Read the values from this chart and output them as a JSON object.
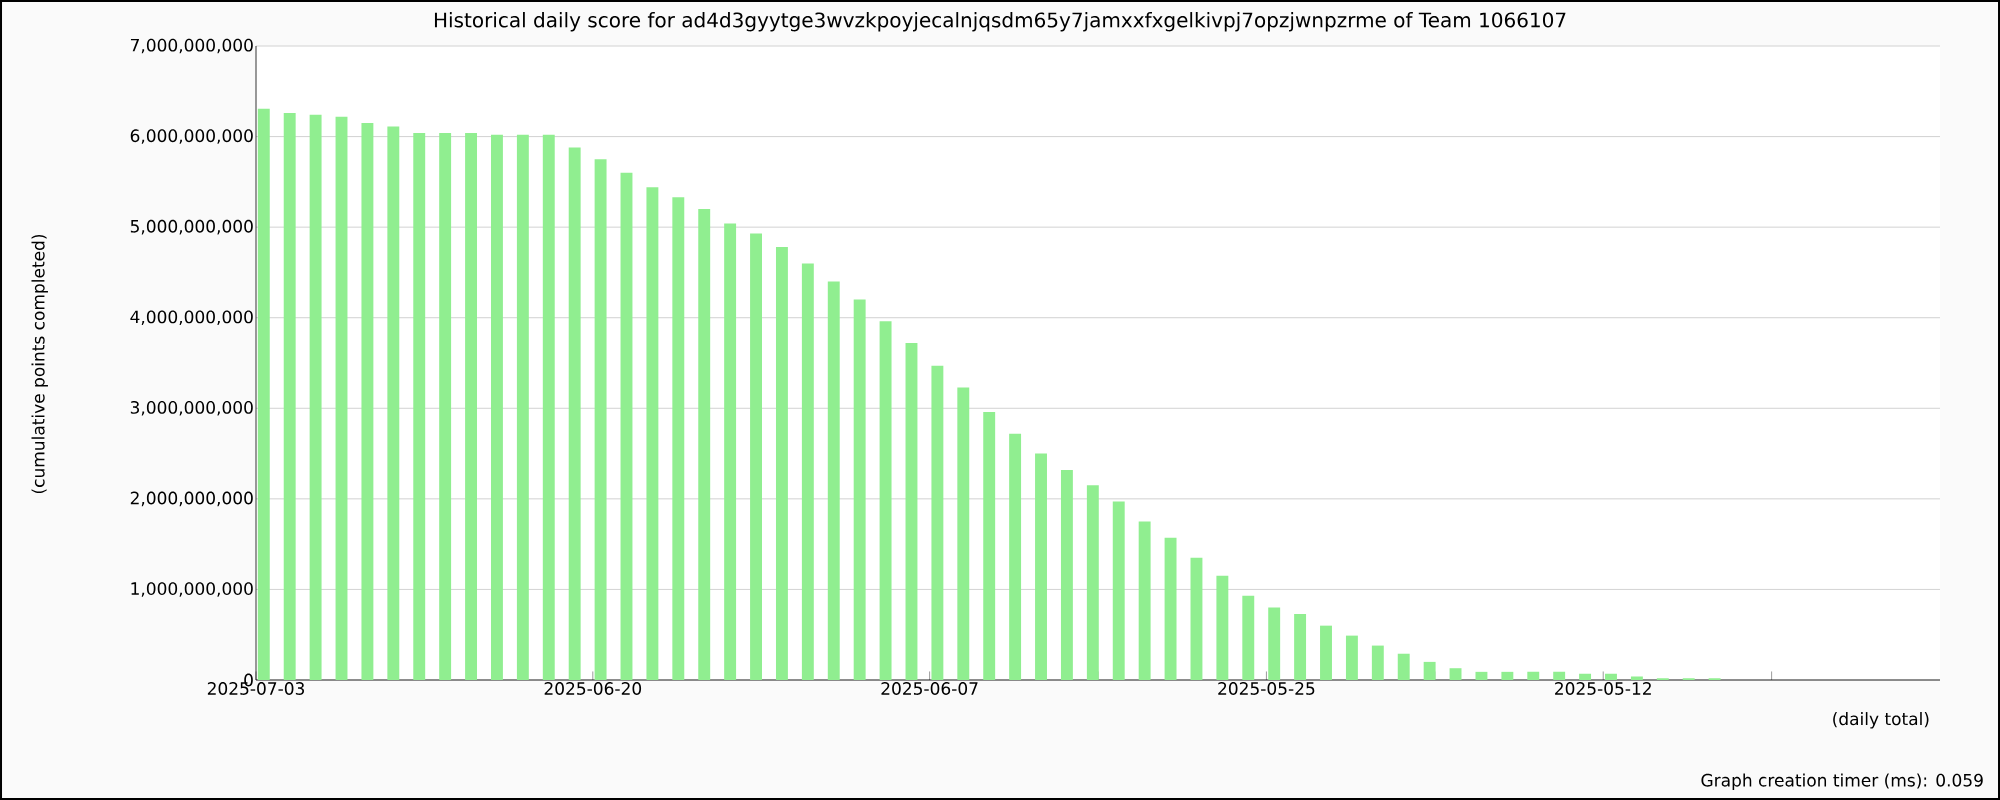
{
  "chart_data": {
    "type": "bar",
    "title": "Historical daily score for ad4d3gyytge3wvzkpoyjecalnjqsdm65y7jamxxfxgelkivpj7opzjwnpzrme of Team 1066107",
    "xlabel": "(daily total)",
    "ylabel": "(cumulative points completed)",
    "categories": [
      "2025-07-03",
      null,
      null,
      null,
      null,
      null,
      null,
      null,
      null,
      null,
      null,
      null,
      null,
      "2025-06-20",
      null,
      null,
      null,
      null,
      null,
      null,
      null,
      null,
      null,
      null,
      null,
      null,
      "2025-06-07",
      null,
      null,
      null,
      null,
      null,
      null,
      null,
      null,
      null,
      null,
      null,
      null,
      "2025-05-25",
      null,
      null,
      null,
      null,
      null,
      null,
      null,
      null,
      null,
      null,
      null,
      null,
      "2025-05-12",
      null,
      null,
      null,
      null,
      null,
      null,
      null,
      null,
      null,
      null,
      null,
      null
    ],
    "values": [
      6310000000,
      6260000000,
      6240000000,
      6220000000,
      6150000000,
      6110000000,
      6040000000,
      6040000000,
      6040000000,
      6020000000,
      6020000000,
      6020000000,
      5880000000,
      5750000000,
      5600000000,
      5440000000,
      5330000000,
      5200000000,
      5040000000,
      4930000000,
      4780000000,
      4600000000,
      4400000000,
      4200000000,
      3960000000,
      3720000000,
      3470000000,
      3230000000,
      2960000000,
      2720000000,
      2500000000,
      2320000000,
      2150000000,
      1970000000,
      1750000000,
      1570000000,
      1350000000,
      1150000000,
      930000000,
      800000000,
      730000000,
      600000000,
      490000000,
      380000000,
      290000000,
      200000000,
      130000000,
      90000000,
      90000000,
      90000000,
      90000000,
      70000000,
      70000000,
      40000000,
      20000000,
      20000000,
      20000000,
      null,
      null,
      null,
      null,
      null,
      null,
      null,
      null
    ],
    "color": "#90ee90",
    "ylim": [
      0,
      7000000000
    ],
    "yticks": [
      {
        "value": 0,
        "label": "0"
      },
      {
        "value": 1000000000,
        "label": "1,000,000,000"
      },
      {
        "value": 2000000000,
        "label": "2,000,000,000"
      },
      {
        "value": 3000000000,
        "label": "3,000,000,000"
      },
      {
        "value": 4000000000,
        "label": "4,000,000,000"
      },
      {
        "value": 5000000000,
        "label": "5,000,000,000"
      },
      {
        "value": 6000000000,
        "label": "6,000,000,000"
      },
      {
        "value": 7000000000,
        "label": "7,000,000,000"
      }
    ],
    "grid": "y",
    "annotations": [
      "Graph creation timer (ms): 0.059"
    ]
  }
}
